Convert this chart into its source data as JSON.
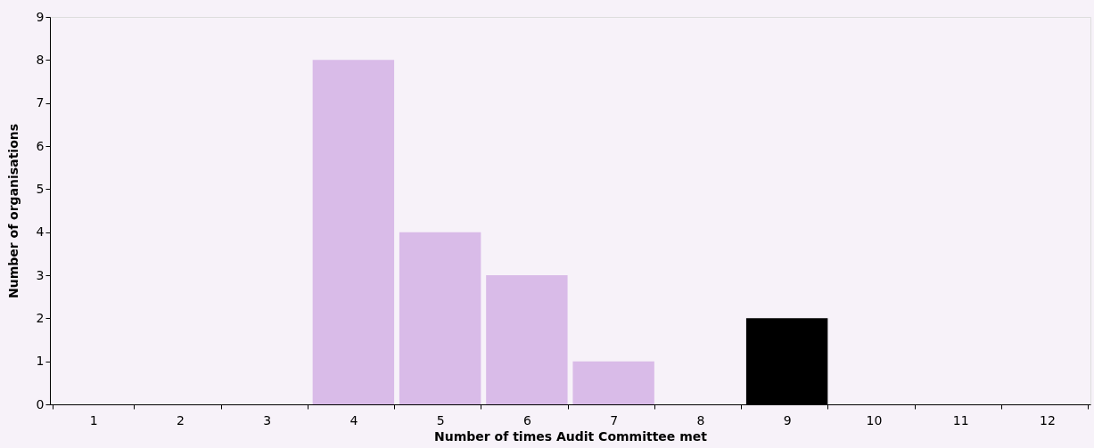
{
  "chart_data": {
    "type": "bar",
    "xlabel": "Number of times Audit Committee met",
    "ylabel": "Number of organisations",
    "categories": [
      "1",
      "2",
      "3",
      "4",
      "5",
      "6",
      "7",
      "8",
      "9",
      "10",
      "11",
      "12"
    ],
    "values": [
      0,
      0,
      0,
      8,
      4,
      3,
      1,
      0,
      2,
      0,
      0,
      0
    ],
    "colors": [
      "#d9bbe8",
      "#d9bbe8",
      "#d9bbe8",
      "#d9bbe8",
      "#d9bbe8",
      "#d9bbe8",
      "#d9bbe8",
      "#d9bbe8",
      "#000000",
      "#d9bbe8",
      "#d9bbe8",
      "#d9bbe8"
    ],
    "ylim": [
      0,
      9
    ],
    "yticks": [
      0,
      1,
      2,
      3,
      4,
      5,
      6,
      7,
      8,
      9
    ],
    "grid": false
  }
}
